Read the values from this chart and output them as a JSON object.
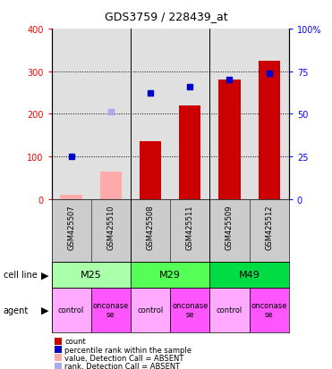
{
  "title": "GDS3759 / 228439_at",
  "samples": [
    "GSM425507",
    "GSM425510",
    "GSM425508",
    "GSM425511",
    "GSM425509",
    "GSM425512"
  ],
  "count_values": [
    10,
    65,
    135,
    220,
    280,
    325
  ],
  "count_absent": [
    true,
    true,
    false,
    false,
    false,
    false
  ],
  "rank_values": [
    25,
    51,
    62,
    66,
    70,
    74
  ],
  "rank_absent": [
    false,
    true,
    false,
    false,
    false,
    false
  ],
  "cell_lines": [
    {
      "label": "M25",
      "cols": [
        0,
        1
      ],
      "color": "#aaffaa"
    },
    {
      "label": "M29",
      "cols": [
        2,
        3
      ],
      "color": "#55ff55"
    },
    {
      "label": "M49",
      "cols": [
        4,
        5
      ],
      "color": "#00dd44"
    }
  ],
  "agents": [
    "control",
    "onconase\nse",
    "control",
    "onconase\nse",
    "control",
    "onconase\nse"
  ],
  "ylim_left": [
    0,
    400
  ],
  "ylim_right": [
    0,
    100
  ],
  "yticks_left": [
    0,
    100,
    200,
    300,
    400
  ],
  "ytick_labels_left": [
    "0",
    "100",
    "200",
    "300",
    "400"
  ],
  "ytick_labels_right": [
    "0",
    "25",
    "50",
    "75",
    "100%"
  ],
  "bar_color_present": "#cc0000",
  "bar_color_absent": "#ffaaaa",
  "rank_color_present": "#0000cc",
  "rank_color_absent": "#aaaaee",
  "bg_color": "#ffffff",
  "sample_bg": "#cccccc",
  "agent_control_color": "#ffaaff",
  "agent_onconase_color": "#ff55ff",
  "legend_items": [
    {
      "color": "#cc0000",
      "label": "count"
    },
    {
      "color": "#0000cc",
      "label": "percentile rank within the sample"
    },
    {
      "color": "#ffaaaa",
      "label": "value, Detection Call = ABSENT"
    },
    {
      "color": "#aaaaee",
      "label": "rank, Detection Call = ABSENT"
    }
  ]
}
